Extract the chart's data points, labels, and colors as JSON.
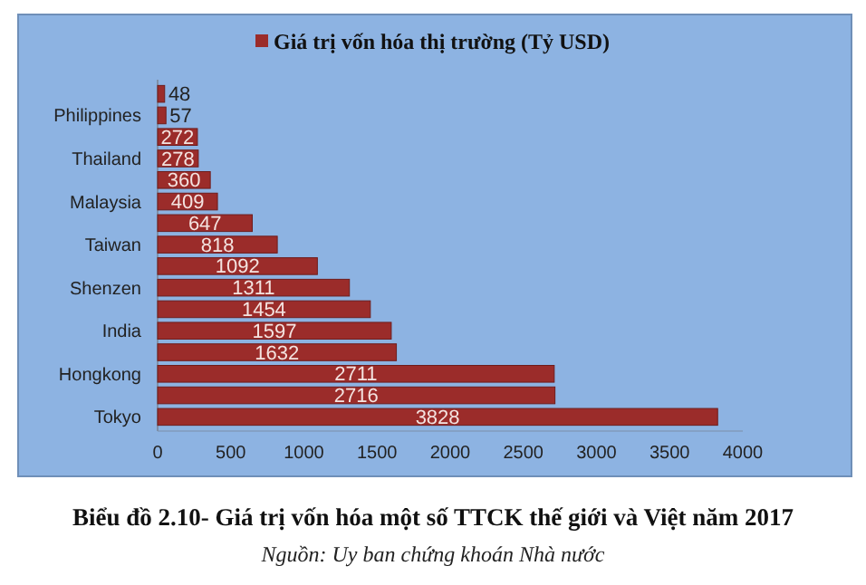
{
  "chart_data": {
    "type": "bar",
    "orientation": "horizontal",
    "title": "Biểu đồ 2.10- Giá trị vốn hóa một số TTCK thế giới và Việt năm 2017",
    "annotations": [
      "Nguồn: Uy ban chứng khoán Nhà nước"
    ],
    "categories": [
      null,
      "Philippines",
      null,
      "Thailand",
      null,
      "Malaysia",
      null,
      "Taiwan",
      null,
      "Shenzen",
      null,
      "India",
      null,
      "Hongkong",
      null,
      "Tokyo"
    ],
    "series": [
      {
        "name": "Giá trị vốn hóa thị trường (Tỷ USD)",
        "color": "#9b2c2a",
        "values": [
          48,
          57,
          272,
          278,
          360,
          409,
          647,
          818,
          1092,
          1311,
          1454,
          1597,
          1632,
          2711,
          2716,
          3828
        ]
      }
    ],
    "xlim": [
      0,
      4000
    ],
    "xticks": [
      0,
      500,
      1000,
      1500,
      2000,
      2500,
      3000,
      3500,
      4000
    ],
    "data_labels": true,
    "legend": "top",
    "grid": false
  }
}
